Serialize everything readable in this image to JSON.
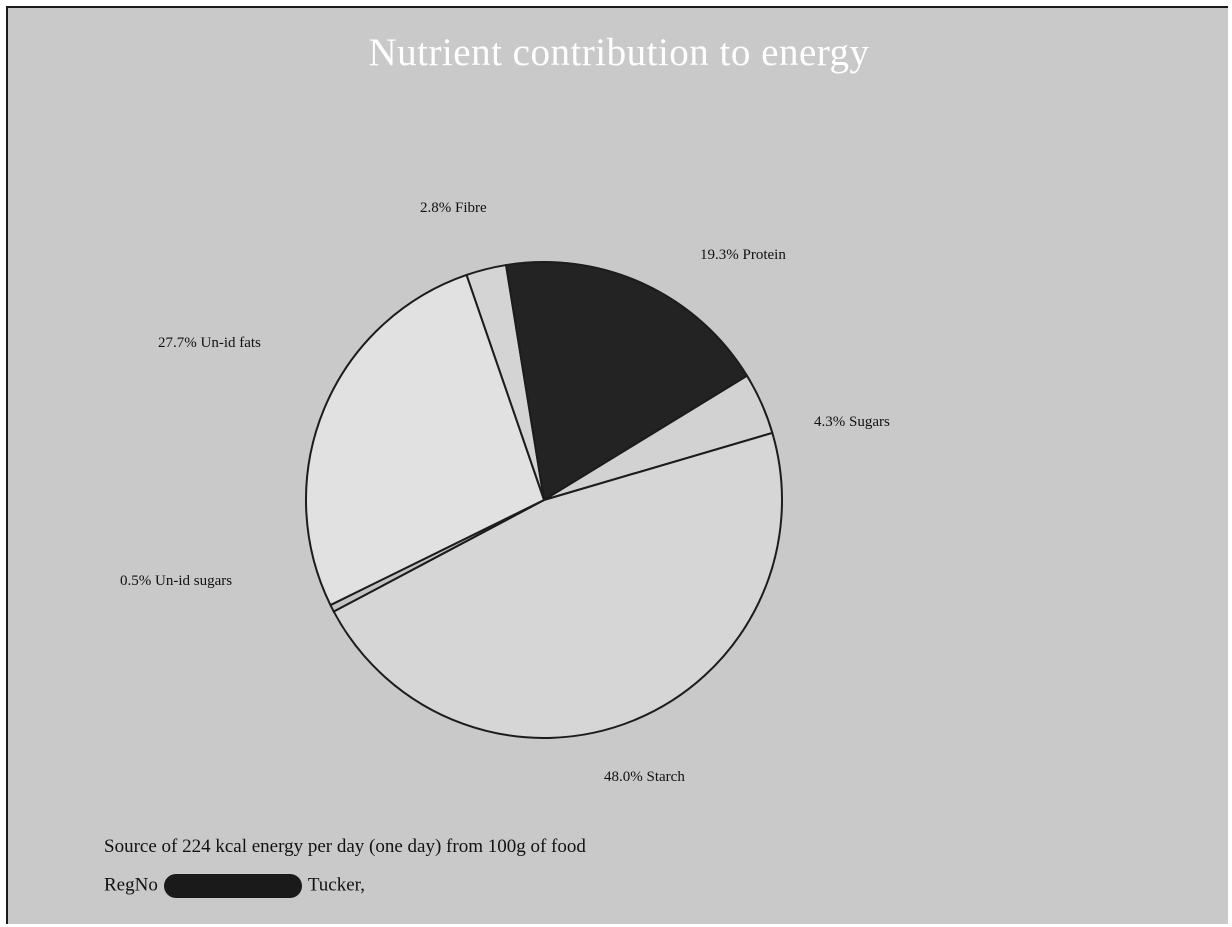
{
  "chart_data": {
    "type": "pie",
    "title": "Nutrient contribution to energy",
    "slices": [
      {
        "label": "2.8% Fibre",
        "name": "Fibre",
        "value": 2.8,
        "color": "#d4d4d4"
      },
      {
        "label": "19.3% Protein",
        "name": "Protein",
        "value": 19.3,
        "color": "#232323"
      },
      {
        "label": "4.3% Sugars",
        "name": "Sugars",
        "value": 4.3,
        "color": "#d2d2d2"
      },
      {
        "label": "48.0% Starch",
        "name": "Starch",
        "value": 48.0,
        "color": "#d6d6d6"
      },
      {
        "label": "0.5% Un-id sugars",
        "name": "Un-id sugars",
        "value": 0.5,
        "color": "#c4c4c4"
      },
      {
        "label": "27.7% Un-id fats",
        "name": "Un-id fats",
        "value": 27.7,
        "color": "#e1e1e1"
      }
    ]
  },
  "footer": {
    "source_line": "Source of 224  kcal energy per day (one day) from 100g of food",
    "reg_prefix": "RegNo",
    "reg_suffix": "Tucker,"
  },
  "colors": {
    "background": "#c9c9c9",
    "title": "#ffffff",
    "redaction": "#1a1a1a"
  }
}
